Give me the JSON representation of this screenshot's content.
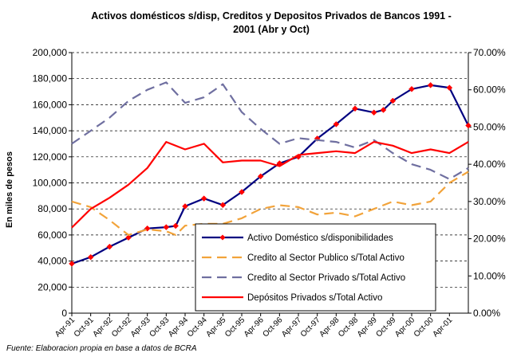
{
  "chart_data": {
    "type": "line",
    "title_lines": [
      "Activos domésticos s/disp, Creditos y Depositos Privados de Bancos 1991 -",
      "2001 (Abr y Oct)"
    ],
    "ylabel": "En miles de pesos",
    "y_left_lim": [
      0,
      200000
    ],
    "y_left_ticks": [
      "0",
      "20,000",
      "40,000",
      "60,000",
      "80,000",
      "100,000",
      "120,000",
      "140,000",
      "160,000",
      "180,000",
      "200,000"
    ],
    "y_right_lim": [
      0,
      0.7
    ],
    "y_right_ticks": [
      "0.00%",
      "10.00%",
      "20.00%",
      "30.00%",
      "40.00%",
      "50.00%",
      "60.00%",
      "70.00%"
    ],
    "grid": "horizontal dashed",
    "legend_position": "bottom-right",
    "categories": [
      "Apr-91",
      "Oct-91",
      "Apr-92",
      "Oct-92",
      "Apr-93",
      "Oct-93",
      "Apr-94",
      "Oct-94",
      "Apr-95",
      "Oct-95",
      "Apr-96",
      "Oct-96",
      "Apr-97",
      "Oct-97",
      "Apr-98",
      "Oct-98",
      "Apr-99",
      "Oct-99",
      "Apr-00",
      "Oct-00",
      "Apr-01"
    ],
    "series": [
      {
        "name": "Activo Doméstico s/disponibilidades",
        "axis": "left",
        "color": "#000080",
        "marker": "diamond",
        "marker_color": "#ff0000",
        "style": "solid",
        "x": [
          0,
          1,
          2,
          3,
          4,
          5,
          5.5,
          6,
          7,
          8,
          9,
          10,
          11,
          12,
          13,
          14,
          15,
          16,
          16.5,
          17,
          18,
          19,
          20,
          21
        ],
        "values": [
          38000,
          43000,
          51000,
          58000,
          65000,
          66000,
          67000,
          82000,
          88000,
          83000,
          93000,
          105000,
          115000,
          120000,
          134000,
          145000,
          157000,
          154000,
          156000,
          163000,
          172000,
          175000,
          173000,
          144000
        ]
      },
      {
        "name": "Credito al Sector Publico s/Total Activo",
        "axis": "right",
        "color": "#f2a33a",
        "style": "dashed",
        "x": [
          0,
          1,
          2,
          3,
          4,
          5,
          5.5,
          6,
          7,
          8,
          9,
          10,
          11,
          12,
          13,
          14,
          15,
          16,
          17,
          18,
          19,
          20,
          21
        ],
        "values": [
          0.3,
          0.285,
          0.25,
          0.21,
          0.225,
          0.22,
          0.21,
          0.235,
          0.24,
          0.24,
          0.255,
          0.28,
          0.29,
          0.285,
          0.265,
          0.27,
          0.26,
          0.28,
          0.3,
          0.29,
          0.3,
          0.35,
          0.38
        ]
      },
      {
        "name": "Credito al Sector Privado s/Total Activo",
        "axis": "right",
        "color": "#6f6fa0",
        "style": "dashed",
        "x": [
          0,
          1,
          2,
          3,
          4,
          5,
          6,
          7,
          8,
          9,
          10,
          11,
          12,
          13,
          14,
          15,
          16,
          17,
          18,
          19,
          20,
          21
        ],
        "values": [
          0.455,
          0.49,
          0.525,
          0.57,
          0.6,
          0.62,
          0.565,
          0.58,
          0.615,
          0.54,
          0.495,
          0.455,
          0.47,
          0.465,
          0.46,
          0.445,
          0.465,
          0.43,
          0.4,
          0.385,
          0.36,
          0.39
        ]
      },
      {
        "name": "Depósitos Privados s/Total Activo",
        "axis": "right",
        "color": "#ff0000",
        "style": "solid",
        "x": [
          0,
          1,
          2,
          3,
          4,
          5,
          6,
          7,
          8,
          9,
          10,
          11,
          12,
          13,
          14,
          15,
          16,
          17,
          18,
          19,
          20,
          21
        ],
        "values": [
          0.23,
          0.28,
          0.31,
          0.345,
          0.39,
          0.46,
          0.44,
          0.455,
          0.405,
          0.41,
          0.41,
          0.395,
          0.425,
          0.43,
          0.435,
          0.43,
          0.46,
          0.45,
          0.43,
          0.44,
          0.43,
          0.46
        ]
      }
    ]
  },
  "source": "Fuente: Elaboracion propia en base a datos de BCRA"
}
